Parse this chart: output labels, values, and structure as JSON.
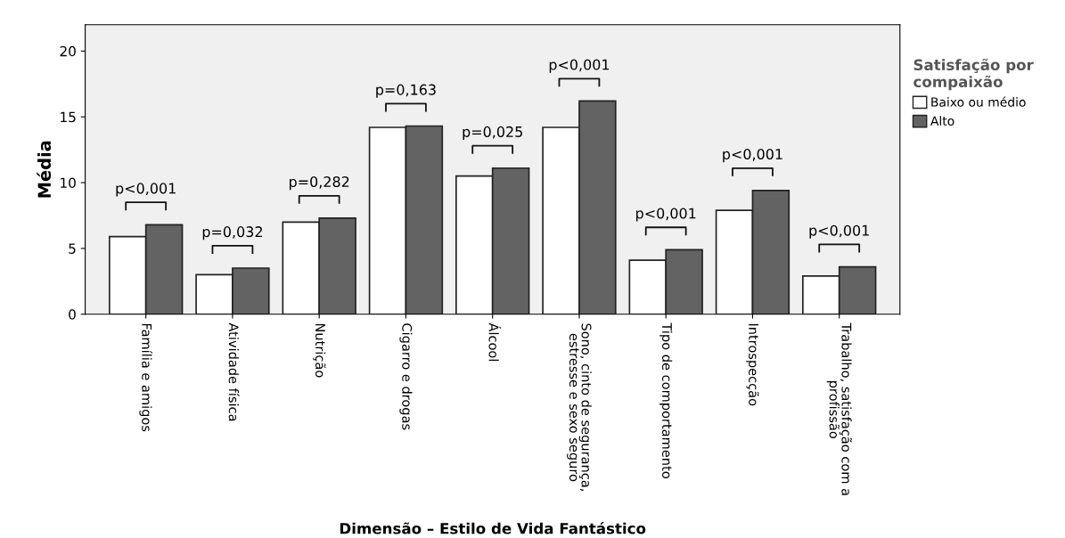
{
  "chart_data": {
    "type": "bar",
    "ylabel": "Média",
    "xlabel": "Dimensão – Estilo de Vida Fantástico",
    "legend_title": "Satisfação por\ncompaixão",
    "legend": "right",
    "categories": [
      "Família e amigos",
      "Atividade física",
      "Nutrição",
      "Cigarro e drogas",
      "Álcool",
      "Sono, cinto de segurança,\nestresse e sexo seguro",
      "Tipo de comportamento",
      "Introspecção",
      "Trabalho, satisfação com a\nprofissão"
    ],
    "series": [
      {
        "name": "Baixo ou médio",
        "color": "#ffffff",
        "values": [
          5.9,
          3.0,
          7.0,
          14.2,
          10.5,
          14.2,
          4.1,
          7.9,
          2.9
        ]
      },
      {
        "name": "Alto",
        "color": "#636363",
        "values": [
          6.8,
          3.5,
          7.3,
          14.3,
          11.1,
          16.2,
          4.9,
          9.4,
          3.6
        ]
      }
    ],
    "ylim": [
      0,
      22
    ],
    "yticks": [
      0,
      5,
      10,
      15,
      20
    ],
    "grid": false,
    "annotations": [
      "p<0,001",
      "p=0,032",
      "p=0,282",
      "p=0,163",
      "p=0,025",
      "p<0,001",
      "p<0,001",
      "p<0,001",
      "p<0,001"
    ]
  }
}
